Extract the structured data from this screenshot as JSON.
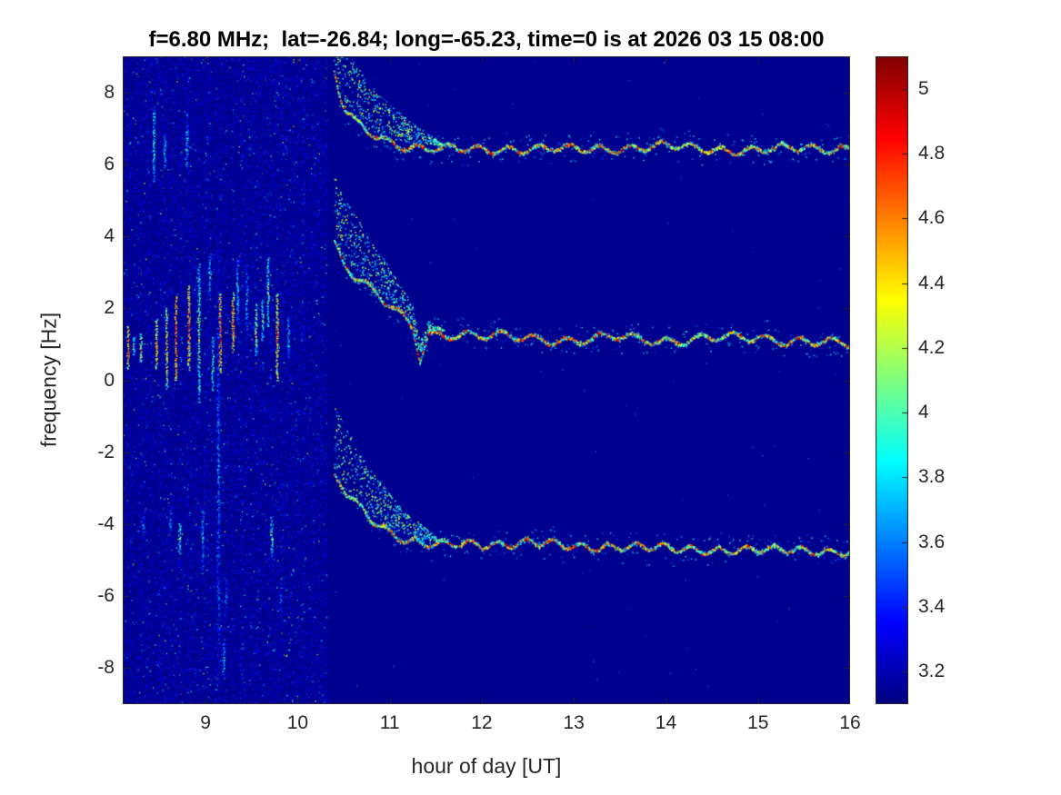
{
  "chart_data": {
    "type": "heatmap",
    "subtype": "doppler-spectrogram",
    "title": "f=6.80 MHz;  lat=-26.84; long=-65.23, time=0 is at 2026 03 15 08:00",
    "xlabel": "hour of day [UT]",
    "ylabel": "frequency [Hz]",
    "xlim": [
      8.1,
      16
    ],
    "ylim": [
      -9,
      9
    ],
    "clim": [
      3.1,
      5.1
    ],
    "xticks": [
      9,
      10,
      11,
      12,
      13,
      14,
      15,
      16
    ],
    "yticks": [
      -8,
      -6,
      -4,
      -2,
      0,
      2,
      4,
      6,
      8
    ],
    "colorbar_ticks": [
      3.2,
      3.4,
      3.6,
      3.8,
      4,
      4.2,
      4.4,
      4.6,
      4.8,
      5
    ],
    "colormap": "jet",
    "grid": false,
    "legend": false,
    "background_value": 3.13,
    "noise_region": {
      "x_start": 8.1,
      "x_end": 10.32,
      "value_min": 3.1,
      "value_max": 3.7
    },
    "streaks": [
      {
        "x": 8.16,
        "y1": 0.3,
        "y2": 1.5,
        "v": 4.9
      },
      {
        "x": 8.22,
        "y1": 0.7,
        "y2": 1.2,
        "v": 4.3
      },
      {
        "x": 8.3,
        "y1": 0.5,
        "y2": 1.3,
        "v": 4.6
      },
      {
        "x": 8.33,
        "y1": -4.4,
        "y2": -3.7,
        "v": 3.9
      },
      {
        "x": 8.44,
        "y1": 5.5,
        "y2": 7.6,
        "v": 4.2
      },
      {
        "x": 8.47,
        "y1": 0.3,
        "y2": 1.7,
        "v": 4.8
      },
      {
        "x": 8.5,
        "y1": -8.5,
        "y2": -7.6,
        "v": 3.7
      },
      {
        "x": 8.56,
        "y1": 5.8,
        "y2": 6.9,
        "v": 4.0
      },
      {
        "x": 8.58,
        "y1": -0.2,
        "y2": 2.0,
        "v": 4.7
      },
      {
        "x": 8.62,
        "y1": -4.3,
        "y2": -3.5,
        "v": 3.9
      },
      {
        "x": 8.68,
        "y1": 0.0,
        "y2": 2.3,
        "v": 5.0
      },
      {
        "x": 8.72,
        "y1": -4.8,
        "y2": -4.0,
        "v": 4.4
      },
      {
        "x": 8.8,
        "y1": 5.9,
        "y2": 7.4,
        "v": 4.1
      },
      {
        "x": 8.82,
        "y1": 0.3,
        "y2": 2.6,
        "v": 4.9
      },
      {
        "x": 8.93,
        "y1": -0.6,
        "y2": 3.2,
        "v": 4.4
      },
      {
        "x": 8.97,
        "y1": -5.3,
        "y2": -3.5,
        "v": 4.0
      },
      {
        "x": 9.05,
        "y1": 2.3,
        "y2": 3.5,
        "v": 4.1
      },
      {
        "x": 9.08,
        "y1": -0.3,
        "y2": 1.2,
        "v": 4.3
      },
      {
        "x": 9.14,
        "y1": -8.4,
        "y2": 3.6,
        "v": 3.9
      },
      {
        "x": 9.16,
        "y1": 0.2,
        "y2": 2.4,
        "v": 5.0
      },
      {
        "x": 9.22,
        "y1": -6.9,
        "y2": -5.2,
        "v": 3.8
      },
      {
        "x": 9.2,
        "y1": -8.3,
        "y2": -7.2,
        "v": 4.0
      },
      {
        "x": 9.3,
        "y1": 0.8,
        "y2": 2.4,
        "v": 4.9
      },
      {
        "x": 9.35,
        "y1": 1.6,
        "y2": 3.4,
        "v": 4.2
      },
      {
        "x": 9.45,
        "y1": 1.2,
        "y2": 3.2,
        "v": 4.0
      },
      {
        "x": 9.55,
        "y1": 0.7,
        "y2": 2.1,
        "v": 4.5
      },
      {
        "x": 9.62,
        "y1": 1.1,
        "y2": 2.2,
        "v": 4.3
      },
      {
        "x": 9.68,
        "y1": 1.5,
        "y2": 3.4,
        "v": 4.4
      },
      {
        "x": 9.72,
        "y1": -4.9,
        "y2": -3.8,
        "v": 4.3
      },
      {
        "x": 9.78,
        "y1": 0.0,
        "y2": 2.4,
        "v": 4.8
      },
      {
        "x": 9.82,
        "y1": -6.6,
        "y2": -5.3,
        "v": 3.8
      },
      {
        "x": 9.88,
        "y1": 6.0,
        "y2": 7.1,
        "v": 3.7
      },
      {
        "x": 9.9,
        "y1": 0.6,
        "y2": 1.8,
        "v": 4.2
      },
      {
        "x": 10.05,
        "y1": 0.8,
        "y2": 1.6,
        "v": 3.8
      }
    ],
    "traces": [
      {
        "name": "upper-doppler-trace",
        "settled_frequency_hz": 6.4,
        "wobble_amp": 0.1,
        "wobble_period": 0.33,
        "anchors": [
          [
            10.4,
            8.6
          ],
          [
            10.45,
            8.0
          ],
          [
            10.52,
            7.5
          ],
          [
            10.62,
            7.15
          ],
          [
            10.75,
            6.9
          ],
          [
            10.95,
            6.65
          ],
          [
            11.2,
            6.5
          ],
          [
            11.6,
            6.42
          ],
          [
            12.0,
            6.38
          ],
          [
            12.5,
            6.45
          ],
          [
            13.0,
            6.4
          ],
          [
            13.5,
            6.45
          ],
          [
            14.0,
            6.5
          ],
          [
            14.5,
            6.42
          ],
          [
            15.0,
            6.38
          ],
          [
            15.5,
            6.45
          ],
          [
            16.0,
            6.45
          ]
        ]
      },
      {
        "name": "middle-doppler-trace",
        "settled_frequency_hz": 1.1,
        "wobble_amp": 0.11,
        "wobble_period": 0.36,
        "anchors": [
          [
            10.4,
            3.8
          ],
          [
            10.5,
            3.3
          ],
          [
            10.62,
            2.95
          ],
          [
            10.78,
            2.6
          ],
          [
            10.95,
            2.2
          ],
          [
            11.1,
            1.8
          ],
          [
            11.25,
            1.45
          ],
          [
            11.33,
            0.55
          ],
          [
            11.42,
            1.25
          ],
          [
            11.7,
            1.3
          ],
          [
            12.0,
            1.25
          ],
          [
            12.5,
            1.15
          ],
          [
            13.0,
            1.1
          ],
          [
            13.5,
            1.2
          ],
          [
            14.0,
            1.1
          ],
          [
            14.5,
            1.15
          ],
          [
            15.0,
            1.2
          ],
          [
            15.5,
            1.05
          ],
          [
            16.0,
            1.0
          ]
        ]
      },
      {
        "name": "lower-doppler-trace",
        "settled_frequency_hz": -4.7,
        "wobble_amp": 0.1,
        "wobble_period": 0.3,
        "anchors": [
          [
            10.4,
            -2.75
          ],
          [
            10.52,
            -3.1
          ],
          [
            10.65,
            -3.5
          ],
          [
            10.8,
            -3.85
          ],
          [
            11.0,
            -4.2
          ],
          [
            11.2,
            -4.45
          ],
          [
            11.5,
            -4.6
          ],
          [
            12.0,
            -4.55
          ],
          [
            12.5,
            -4.5
          ],
          [
            13.0,
            -4.65
          ],
          [
            13.5,
            -4.6
          ],
          [
            14.0,
            -4.7
          ],
          [
            14.5,
            -4.7
          ],
          [
            15.0,
            -4.75
          ],
          [
            15.5,
            -4.7
          ],
          [
            16.0,
            -4.8
          ]
        ]
      }
    ]
  }
}
